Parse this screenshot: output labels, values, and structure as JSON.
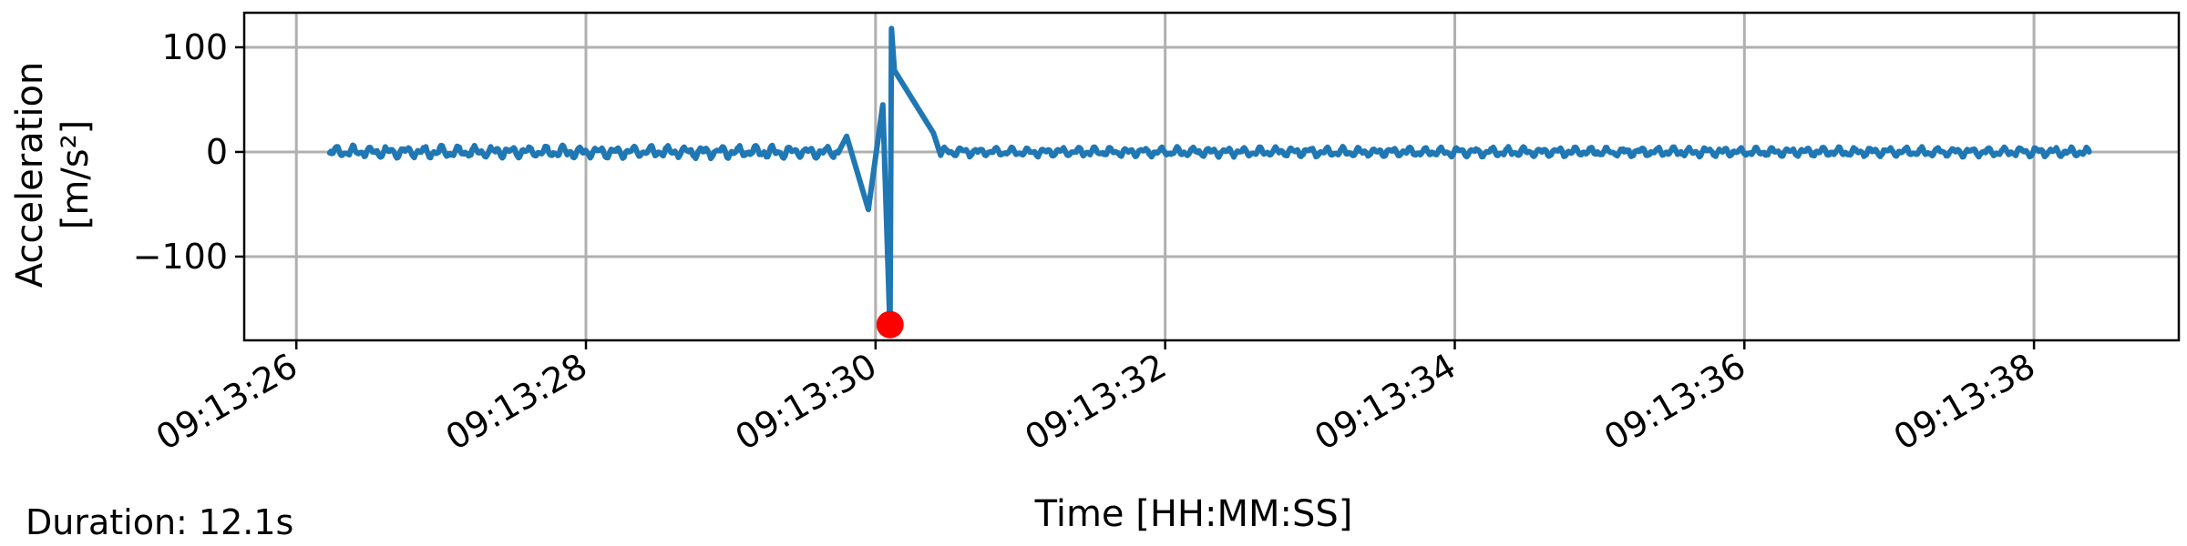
{
  "chart_data": {
    "type": "line",
    "xlabel": "Time [HH:MM:SS]",
    "ylabel_lines": [
      "Acceleration",
      "[m/s²]"
    ],
    "ylim": [
      -180,
      133
    ],
    "xlim_seconds": [
      -0.36,
      13.0
    ],
    "y_ticks": [
      100,
      0,
      -100
    ],
    "y_tick_labels": [
      "100",
      "0",
      "−100"
    ],
    "x_ticks": [
      "09:13:26",
      "09:13:28",
      "09:13:30",
      "09:13:32",
      "09:13:34",
      "09:13:36",
      "09:13:38"
    ],
    "grid": true,
    "series": [
      {
        "color": "#1f77b4",
        "x_start": "09:13:26.23",
        "x_end": "09:13:38.38",
        "description_points": [
          [
            "09:13:26.23",
            0
          ],
          [
            "09:13:29.80",
            15
          ],
          [
            "09:13:29.95",
            -55
          ],
          [
            "09:13:30.05",
            45
          ],
          [
            "09:13:30.10",
            -170
          ],
          [
            "09:13:30.11",
            118
          ],
          [
            "09:13:30.13",
            78
          ],
          [
            "09:13:30.40",
            18
          ],
          [
            "09:13:38.38",
            0
          ]
        ]
      }
    ],
    "markers": [
      {
        "x": "09:13:30.10",
        "y": -165,
        "color": "#ff0000"
      }
    ]
  },
  "footer": {
    "duration_text": "Duration: 12.1s"
  }
}
